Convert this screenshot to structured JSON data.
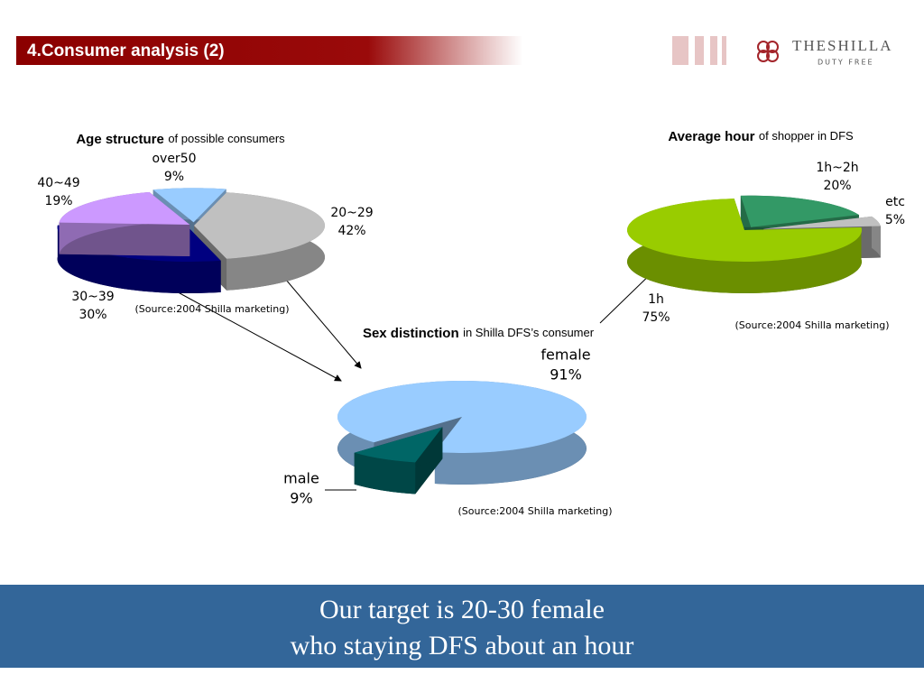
{
  "header": {
    "title": "4.Consumer analysis (2)",
    "logo": "THESHILLA",
    "logo_sub": "DUTY FREE"
  },
  "chart_data": [
    {
      "type": "pie",
      "title": "Age structure",
      "subtitle": "of possible consumers",
      "source": "(Source:2004 Shilla marketing)",
      "categories": [
        "over50",
        "20~29",
        "30~39",
        "40~49"
      ],
      "values": [
        9,
        42,
        30,
        19
      ],
      "value_labels": [
        "9%",
        "42%",
        "30%",
        "19%"
      ],
      "colors": [
        "#99ccff",
        "#c0c0c0",
        "#000080",
        "#cc99ff"
      ]
    },
    {
      "type": "pie",
      "title": "Average hour",
      "subtitle": "of shopper in DFS",
      "source": "(Source:2004 Shilla marketing)",
      "categories": [
        "1h~2h",
        "etc",
        "1h"
      ],
      "values": [
        20,
        5,
        75
      ],
      "value_labels": [
        "20%",
        "5%",
        "75%"
      ],
      "colors": [
        "#339966",
        "#c0c0c0",
        "#99cc00"
      ]
    },
    {
      "type": "pie",
      "title": "Sex distinction",
      "subtitle": "in Shilla DFS’s consumer",
      "source": "(Source:2004 Shilla marketing)",
      "categories": [
        "female",
        "male"
      ],
      "values": [
        91,
        9
      ],
      "value_labels": [
        "91%",
        "9%"
      ],
      "colors": [
        "#99ccff",
        "#006666"
      ]
    }
  ],
  "footer": {
    "lines": [
      "Our target is 20-30 female",
      "who staying DFS about an hour"
    ]
  }
}
